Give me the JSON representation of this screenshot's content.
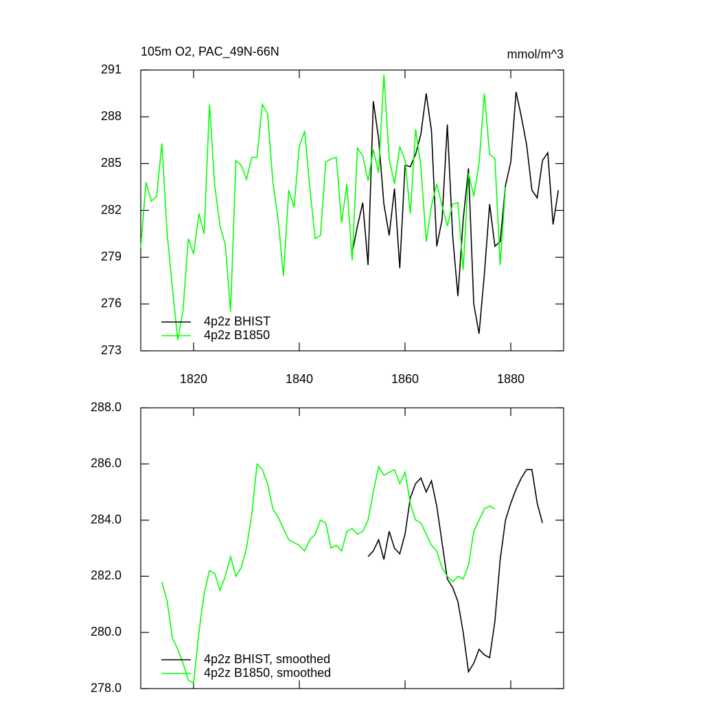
{
  "chart_data": [
    {
      "type": "line",
      "title": "105m O2, PAC_49N-66N",
      "units": "mmol/m^3",
      "xlim": [
        1810,
        1890
      ],
      "xticks": [
        1820,
        1840,
        1860,
        1880
      ],
      "ylim": [
        273,
        291
      ],
      "yticks": [
        273,
        276,
        279,
        282,
        285,
        288,
        291
      ],
      "legend": "lower left",
      "series": [
        {
          "name": "4p2z BHIST",
          "color": "#000000",
          "x": [
            1850,
            1851,
            1852,
            1853,
            1854,
            1855,
            1856,
            1857,
            1858,
            1859,
            1860,
            1861,
            1862,
            1863,
            1864,
            1865,
            1866,
            1867,
            1868,
            1869,
            1870,
            1871,
            1872,
            1873,
            1874,
            1875,
            1876,
            1877,
            1878,
            1879,
            1880,
            1881,
            1882,
            1883,
            1884,
            1885,
            1886,
            1887,
            1888,
            1889
          ],
          "values": [
            279.3,
            281.0,
            282.5,
            278.5,
            289.0,
            286.6,
            282.4,
            280.4,
            283.4,
            278.3,
            284.9,
            284.8,
            285.6,
            286.9,
            289.5,
            287.1,
            279.7,
            281.4,
            287.5,
            280.4,
            276.5,
            281.4,
            284.7,
            276.0,
            274.1,
            277.9,
            282.4,
            279.7,
            280.0,
            283.6,
            285.1,
            289.6,
            288.0,
            286.2,
            283.3,
            282.8,
            285.2,
            285.7,
            281.1,
            283.3
          ]
        },
        {
          "name": "4p2z B1850",
          "color": "#00ff00",
          "x": [
            1810,
            1811,
            1812,
            1813,
            1814,
            1815,
            1816,
            1817,
            1818,
            1819,
            1820,
            1821,
            1822,
            1823,
            1824,
            1825,
            1826,
            1827,
            1828,
            1829,
            1830,
            1831,
            1832,
            1833,
            1834,
            1835,
            1836,
            1837,
            1838,
            1839,
            1840,
            1841,
            1842,
            1843,
            1844,
            1845,
            1846,
            1847,
            1848,
            1849,
            1850,
            1851,
            1852,
            1853,
            1854,
            1855,
            1856,
            1857,
            1858,
            1859,
            1860,
            1861,
            1862,
            1863,
            1864,
            1865,
            1866,
            1867,
            1868,
            1869,
            1870,
            1871,
            1872,
            1873,
            1874,
            1875,
            1876,
            1877,
            1878,
            1879
          ],
          "values": [
            279.6,
            283.8,
            282.6,
            282.9,
            286.3,
            280.5,
            277.0,
            273.7,
            275.6,
            280.2,
            279.2,
            281.8,
            280.5,
            288.8,
            283.6,
            281.0,
            279.8,
            275.5,
            285.2,
            284.9,
            284.0,
            285.4,
            285.4,
            288.8,
            288.2,
            283.8,
            281.4,
            277.8,
            283.3,
            282.2,
            286.1,
            287.1,
            283.4,
            280.2,
            280.4,
            285.1,
            285.3,
            285.4,
            281.2,
            283.7,
            278.8,
            286.0,
            285.5,
            283.9,
            285.9,
            284.4,
            290.7,
            285.3,
            283.7,
            286.1,
            285.2,
            281.8,
            287.2,
            284.8,
            280.0,
            282.3,
            283.7,
            282.3,
            281.0,
            282.4,
            282.5,
            278.2,
            284.4,
            282.9,
            285.0,
            289.5,
            285.6,
            285.3,
            278.5,
            283.5
          ]
        }
      ]
    },
    {
      "type": "line",
      "xlim": [
        1810,
        1890
      ],
      "ylim": [
        278,
        288
      ],
      "yticks": [
        {
          "value": 278,
          "label": "278.0"
        },
        {
          "value": 280,
          "label": "280.0"
        },
        {
          "value": 282,
          "label": "282.0"
        },
        {
          "value": 284,
          "label": "284.0"
        },
        {
          "value": 286,
          "label": "286.0"
        },
        {
          "value": 288,
          "label": "288.0"
        }
      ],
      "legend": "lower left",
      "series": [
        {
          "name": "4p2z BHIST, smoothed",
          "color": "#000000",
          "x": [
            1853,
            1854,
            1855,
            1856,
            1857,
            1858,
            1859,
            1860,
            1861,
            1862,
            1863,
            1864,
            1865,
            1866,
            1867,
            1868,
            1869,
            1870,
            1871,
            1872,
            1873,
            1874,
            1875,
            1876,
            1877,
            1878,
            1879,
            1880,
            1881,
            1882,
            1883,
            1884,
            1885,
            1886
          ],
          "values": [
            282.7,
            282.9,
            283.3,
            282.6,
            283.6,
            283.0,
            282.8,
            283.5,
            284.8,
            285.3,
            285.5,
            285.0,
            285.4,
            284.5,
            283.2,
            281.9,
            281.6,
            281.1,
            280.0,
            278.6,
            278.9,
            279.4,
            279.2,
            279.1,
            280.4,
            282.6,
            284.0,
            284.6,
            285.1,
            285.5,
            285.8,
            285.8,
            284.6,
            283.9
          ]
        },
        {
          "name": "4p2z B1850, smoothed",
          "color": "#00ff00",
          "x": [
            1814,
            1815,
            1816,
            1817,
            1818,
            1819,
            1820,
            1821,
            1822,
            1823,
            1824,
            1825,
            1826,
            1827,
            1828,
            1829,
            1830,
            1831,
            1832,
            1833,
            1834,
            1835,
            1836,
            1837,
            1838,
            1839,
            1840,
            1841,
            1842,
            1843,
            1844,
            1845,
            1846,
            1847,
            1848,
            1849,
            1850,
            1851,
            1852,
            1853,
            1854,
            1855,
            1856,
            1857,
            1858,
            1859,
            1860,
            1861,
            1862,
            1863,
            1864,
            1865,
            1866,
            1867,
            1868,
            1869,
            1870,
            1871,
            1872,
            1873,
            1874,
            1875,
            1876,
            1877
          ],
          "values": [
            281.8,
            281.1,
            279.8,
            279.4,
            278.9,
            278.3,
            278.2,
            280.0,
            281.4,
            282.2,
            282.1,
            281.5,
            282.0,
            282.7,
            282.0,
            282.3,
            283.0,
            284.2,
            286.0,
            285.8,
            285.3,
            284.4,
            284.1,
            283.7,
            283.3,
            283.2,
            283.1,
            282.9,
            283.3,
            283.5,
            284.0,
            283.9,
            283.0,
            283.1,
            282.9,
            283.6,
            283.7,
            283.5,
            283.6,
            284.0,
            285.0,
            285.9,
            285.6,
            285.7,
            285.8,
            285.3,
            285.7,
            284.6,
            284.0,
            283.9,
            283.5,
            283.1,
            282.9,
            282.3,
            282.0,
            281.8,
            282.0,
            281.9,
            282.4,
            283.6,
            284.0,
            284.4,
            284.5,
            284.4
          ]
        }
      ]
    }
  ]
}
